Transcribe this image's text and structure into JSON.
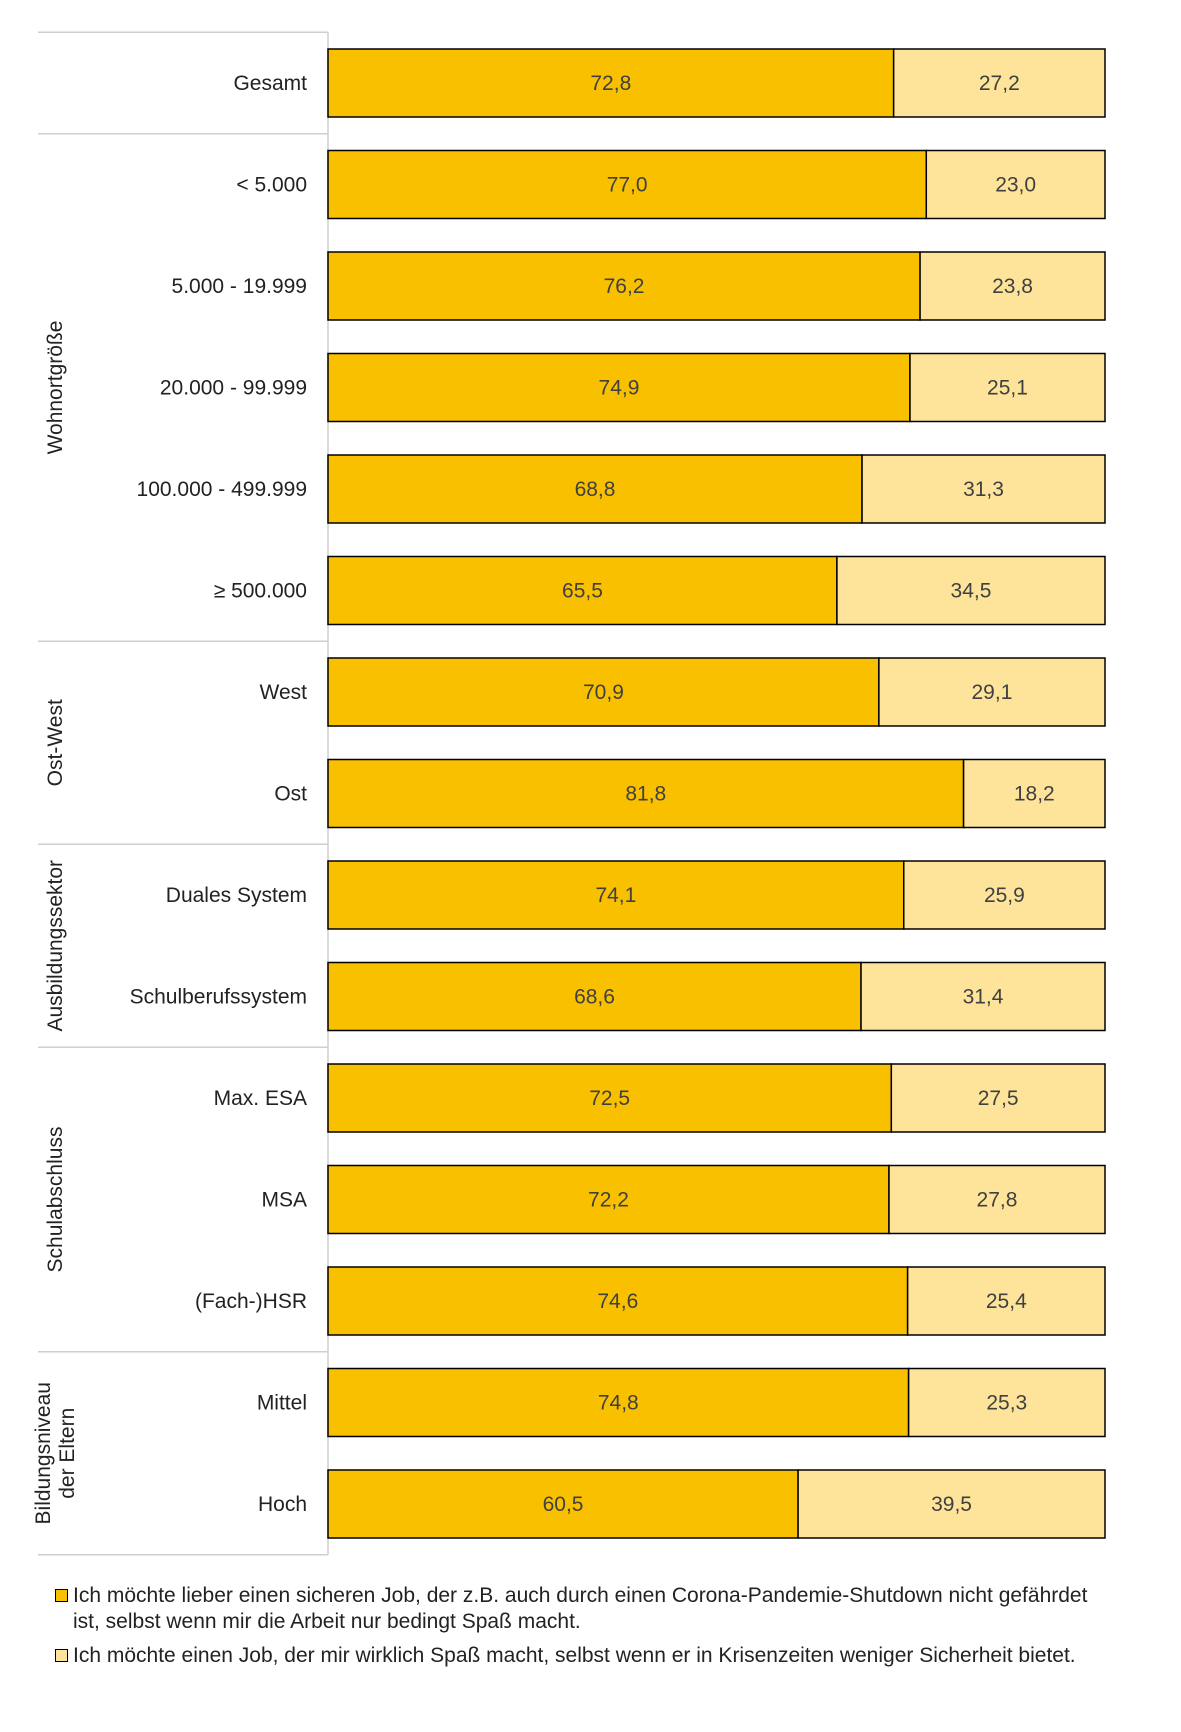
{
  "chart_data": {
    "type": "bar",
    "orientation": "horizontal",
    "stacked": true,
    "percent_stacked": true,
    "grid": false,
    "legend_position": "bottom",
    "series": [
      {
        "name": "Ich möchte lieber einen sicheren Job, der z.B. auch durch einen Corona-Pandemie-Shutdown nicht gefährdet ist, selbst wenn mir die Arbeit nur bedingt Spaß macht.",
        "color": "#F9C000",
        "values": [
          72.8,
          77.0,
          76.2,
          74.9,
          68.8,
          65.5,
          70.9,
          81.8,
          74.1,
          68.6,
          72.5,
          72.2,
          74.6,
          74.8,
          60.5
        ],
        "labels": [
          "72,8",
          "77,0",
          "76,2",
          "74,9",
          "68,8",
          "65,5",
          "70,9",
          "81,8",
          "74,1",
          "68,6",
          "72,5",
          "72,2",
          "74,6",
          "74,8",
          "60,5"
        ]
      },
      {
        "name": "Ich möchte einen Job, der mir wirklich Spaß macht, selbst wenn er in Krisenzeiten weniger Sicherheit bietet.",
        "color": "#FDE49A",
        "values": [
          27.2,
          23.0,
          23.8,
          25.1,
          31.3,
          34.5,
          29.1,
          18.2,
          25.9,
          31.4,
          27.5,
          27.8,
          25.4,
          25.3,
          39.5
        ],
        "labels": [
          "27,2",
          "23,0",
          "23,8",
          "25,1",
          "31,3",
          "34,5",
          "29,1",
          "18,2",
          "25,9",
          "31,4",
          "27,5",
          "27,8",
          "25,4",
          "25,3",
          "39,5"
        ]
      }
    ],
    "groups": [
      {
        "name": "",
        "lines": [],
        "categories": [
          "Gesamt"
        ]
      },
      {
        "name": "Wohnortgröße",
        "lines": [
          "Wohnortgröße"
        ],
        "categories": [
          "< 5.000",
          "5.000 - 19.999",
          "20.000 - 99.999",
          "100.000 - 499.999",
          "≥ 500.000"
        ]
      },
      {
        "name": "Ost-West",
        "lines": [
          "Ost-West"
        ],
        "categories": [
          "West",
          "Ost"
        ]
      },
      {
        "name": "Ausbildungssektor",
        "lines": [
          "Ausbildungssektor"
        ],
        "categories": [
          "Duales System",
          "Schulberufssystem"
        ]
      },
      {
        "name": "Schulabschluss",
        "lines": [
          "Schulabschluss"
        ],
        "categories": [
          "Max. ESA",
          "MSA",
          "(Fach-)HSR"
        ]
      },
      {
        "name": "Bildungsniveau der Eltern",
        "lines": [
          "Bildungsniveau",
          "der Eltern"
        ],
        "categories": [
          "Mittel",
          "Hoch"
        ]
      }
    ],
    "xlim": [
      0,
      100
    ]
  },
  "legend": {
    "items": [
      {
        "label": "Ich möchte lieber einen sicheren Job, der z.B. auch durch einen Corona-Pandemie-Shutdown nicht gefährdet ist, selbst wenn mir die Arbeit nur bedingt Spaß macht.",
        "color": "#F9C000"
      },
      {
        "label": "Ich möchte einen Job, der mir wirklich Spaß macht, selbst wenn er in Krisenzeiten weniger Sicherheit bietet.",
        "color": "#FDE49A"
      }
    ]
  }
}
